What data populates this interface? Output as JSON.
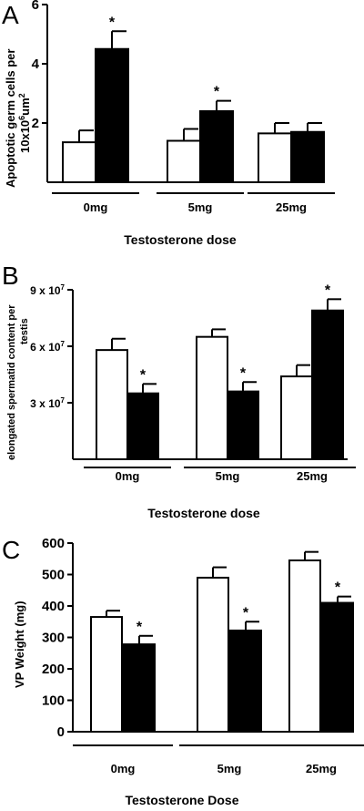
{
  "chart_data": [
    {
      "type": "bar",
      "panel": "A",
      "ylabel_lines": [
        "Apoptotic germ cells per",
        "10x10",
        "6",
        "um",
        "2"
      ],
      "xlabel": "Testosterone dose",
      "categories": [
        "0mg",
        "5mg",
        "25mg"
      ],
      "ylim": [
        0,
        6
      ],
      "yticks": [
        "2",
        "4",
        "6"
      ],
      "ytick_values": [
        2,
        4,
        6
      ],
      "series": [
        {
          "fill": "#ffffff",
          "values": [
            1.35,
            1.4,
            1.65
          ],
          "errors": [
            0.4,
            0.4,
            0.35
          ]
        },
        {
          "fill": "#000000",
          "values": [
            4.5,
            2.4,
            1.7
          ],
          "errors": [
            0.6,
            0.35,
            0.3
          ],
          "significant": [
            true,
            true,
            false
          ]
        }
      ],
      "sig_marker": "*"
    },
    {
      "type": "bar",
      "panel": "B",
      "ylabel_lines": [
        "elongated spermatid content per",
        "testis"
      ],
      "xlabel": "Testosterone dose",
      "categories": [
        "0mg",
        "5mg",
        "25mg"
      ],
      "ylim": [
        0,
        90000000
      ],
      "yticks": [
        {
          "base": "3 x 10",
          "exp": "7"
        },
        {
          "base": "6 x 10",
          "exp": "7"
        },
        {
          "base": "9 x 10",
          "exp": "7"
        }
      ],
      "ytick_values": [
        30000000,
        60000000,
        90000000
      ],
      "series": [
        {
          "fill": "#ffffff",
          "values": [
            58000000,
            65000000,
            44000000
          ],
          "errors": [
            6000000,
            4000000,
            6000000
          ]
        },
        {
          "fill": "#000000",
          "values": [
            35000000,
            36000000,
            79000000
          ],
          "errors": [
            5000000,
            5000000,
            6000000
          ],
          "significant": [
            true,
            true,
            true
          ]
        }
      ],
      "sig_marker": "*"
    },
    {
      "type": "bar",
      "panel": "C",
      "ylabel": "VP Weight (mg)",
      "xlabel": "Testosterone Dose",
      "categories": [
        "0mg",
        "5mg",
        "25mg"
      ],
      "ylim": [
        0,
        600
      ],
      "yticks": [
        "0",
        "100",
        "200",
        "300",
        "400",
        "500",
        "600"
      ],
      "ytick_values": [
        0,
        100,
        200,
        300,
        400,
        500,
        600
      ],
      "series": [
        {
          "fill": "#ffffff",
          "values": [
            365,
            490,
            545
          ],
          "errors": [
            20,
            33,
            27
          ]
        },
        {
          "fill": "#000000",
          "values": [
            278,
            322,
            410
          ],
          "errors": [
            27,
            28,
            20
          ],
          "significant": [
            true,
            true,
            true
          ]
        }
      ],
      "sig_marker": "*"
    }
  ]
}
